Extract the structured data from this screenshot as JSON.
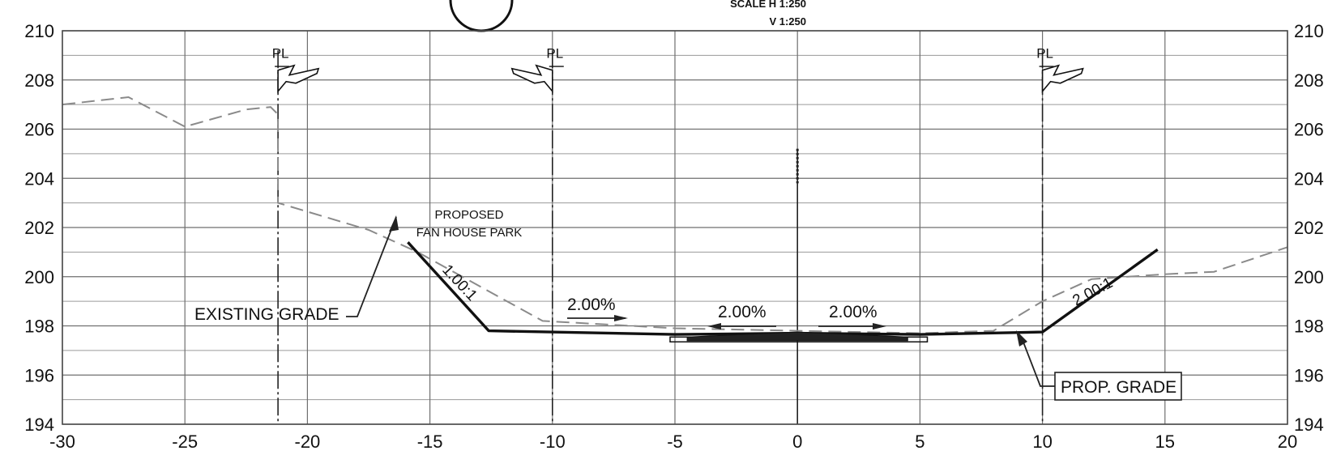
{
  "scale_text": {
    "horizontal": "SCALE H 1:250",
    "vertical": "V 1:250"
  },
  "axes": {
    "x_min": -30,
    "x_max": 20,
    "y_min": 194,
    "y_max": 210,
    "x_ticks": [
      "-30",
      "-25",
      "-20",
      "-15",
      "-10",
      "-5",
      "0",
      "5",
      "10",
      "15",
      "20"
    ],
    "y_ticks": [
      "194",
      "196",
      "198",
      "200",
      "202",
      "204",
      "206",
      "208",
      "210"
    ],
    "minor_grid_step_y": 1,
    "minor_grid_step_x": 5
  },
  "property_lines": [
    {
      "x": -21.2,
      "label": "PL"
    },
    {
      "x": -10,
      "label": "PL"
    },
    {
      "x": 10,
      "label": "PL"
    }
  ],
  "centerline_x": 0,
  "existing_grade_points": [
    [
      -30,
      207.0
    ],
    [
      -27.3,
      207.3
    ],
    [
      -25,
      206.1
    ],
    [
      -22.5,
      206.8
    ],
    [
      -21.5,
      206.9
    ],
    [
      -21.2,
      206.6
    ],
    [
      -21.2,
      203.0
    ],
    [
      -17.5,
      201.9
    ],
    [
      -15.5,
      201.0
    ],
    [
      -10.4,
      198.2
    ],
    [
      -5,
      197.9
    ],
    [
      0,
      197.8
    ],
    [
      5,
      197.7
    ],
    [
      8,
      197.8
    ],
    [
      10,
      199.0
    ],
    [
      12,
      199.9
    ],
    [
      15,
      200.1
    ],
    [
      17,
      200.2
    ],
    [
      20,
      201.2
    ]
  ],
  "proposed_grade_points": [
    [
      -15.9,
      201.4
    ],
    [
      -12.6,
      197.8
    ],
    [
      -5,
      197.65
    ],
    [
      0,
      197.7
    ],
    [
      5,
      197.65
    ],
    [
      10,
      197.75
    ],
    [
      14.7,
      201.1
    ]
  ],
  "annotations": {
    "park_line1": "PROPOSED",
    "park_line2": "FAN HOUSE PARK",
    "existing_grade": "EXISTING GRADE",
    "prop_grade": "PROP. GRADE",
    "slope_left": "1.00:1",
    "slope_right": "2.00:1",
    "grade_pct_1": "2.00%",
    "grade_pct_2": "2.00%",
    "grade_pct_3": "2.00%"
  }
}
